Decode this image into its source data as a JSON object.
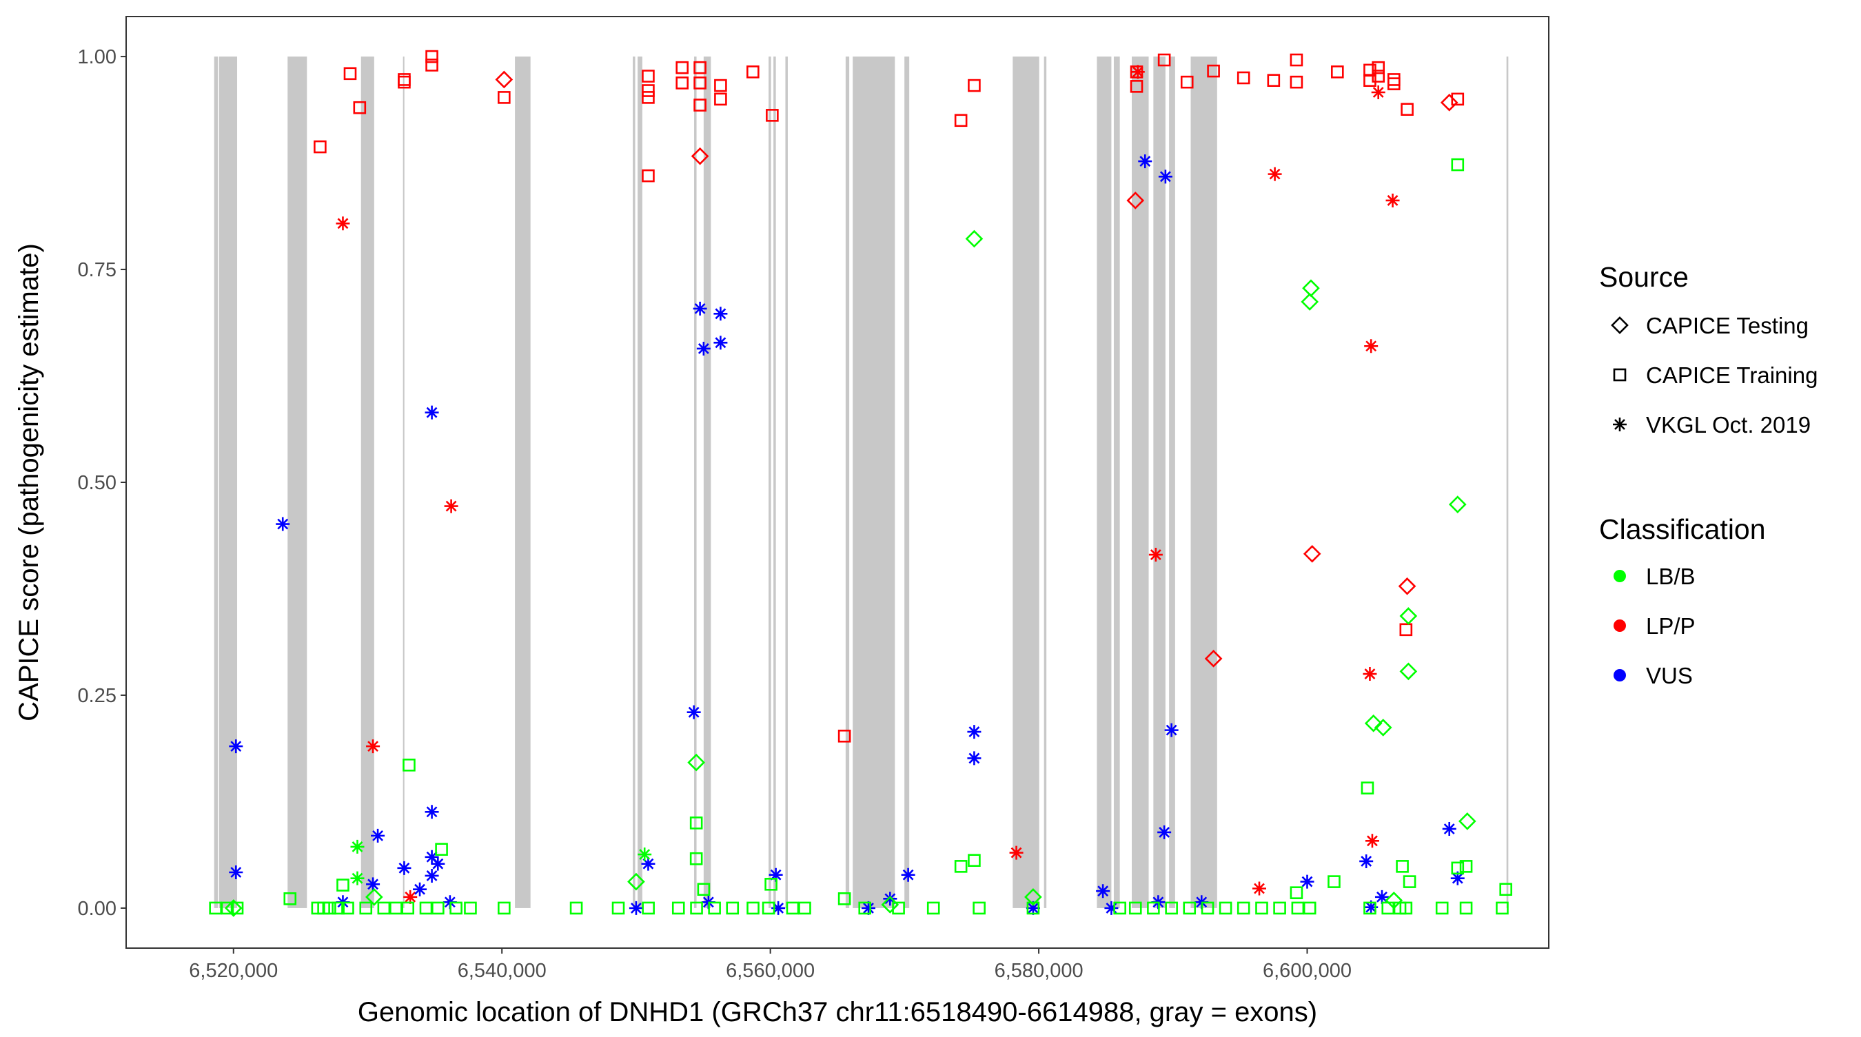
{
  "chart_data": {
    "type": "scatter",
    "xlabel": "Genomic location of DNHD1 (GRCh37 chr11:6518490-6614988, gray = exons)",
    "ylabel": "CAPICE score (pathogenicity estimate)",
    "xlim": [
      6512000,
      6618000
    ],
    "ylim": [
      -0.047,
      1.047
    ],
    "x_ticks": [
      6520000,
      6540000,
      6560000,
      6580000,
      6600000
    ],
    "x_tick_labels": [
      "6,520,000",
      "6,540,000",
      "6,560,000",
      "6,580,000",
      "6,600,000"
    ],
    "y_ticks": [
      0,
      0.25,
      0.5,
      0.75,
      1.0
    ],
    "y_tick_labels": [
      "0.00",
      "0.25",
      "0.50",
      "0.75",
      "1.00"
    ],
    "grid": false,
    "legend_placement": "right",
    "legend": {
      "source_title": "Source",
      "sources": [
        {
          "key": "testing",
          "label": "CAPICE Testing",
          "shape": "diamond"
        },
        {
          "key": "training",
          "label": "CAPICE Training",
          "shape": "square"
        },
        {
          "key": "vkgl",
          "label": "VKGL Oct. 2019",
          "shape": "asterisk"
        }
      ],
      "class_title": "Classification",
      "classes": [
        {
          "key": "LB/B",
          "label": "LB/B",
          "color": "#00ff00"
        },
        {
          "key": "LP/P",
          "label": "LP/P",
          "color": "#ff0000"
        },
        {
          "key": "VUS",
          "label": "VUS",
          "color": "#0000ff"
        }
      ]
    },
    "exons": [
      [
        6518560,
        6518840
      ],
      [
        6518920,
        6520270
      ],
      [
        6524030,
        6525470
      ],
      [
        6529500,
        6530480
      ],
      [
        6532630,
        6532720
      ],
      [
        6540970,
        6542130
      ],
      [
        6549750,
        6549930
      ],
      [
        6550110,
        6550460
      ],
      [
        6554320,
        6554500
      ],
      [
        6555030,
        6555570
      ],
      [
        6559870,
        6560050
      ],
      [
        6560230,
        6560410
      ],
      [
        6561120,
        6561300
      ],
      [
        6565610,
        6565880
      ],
      [
        6566140,
        6569280
      ],
      [
        6569990,
        6570350
      ],
      [
        6578060,
        6580030
      ],
      [
        6580390,
        6580570
      ],
      [
        6584330,
        6585410
      ],
      [
        6585590,
        6586040
      ],
      [
        6586930,
        6588190
      ],
      [
        6588540,
        6589440
      ],
      [
        6589710,
        6590160
      ],
      [
        6591320,
        6593290
      ],
      [
        6614850,
        6614988
      ]
    ],
    "points_fields": [
      "position",
      "score",
      "source",
      "classification"
    ],
    "points": [
      [
        6528690,
        0.98,
        "training",
        "LP/P"
      ],
      [
        6529400,
        0.94,
        "training",
        "LP/P"
      ],
      [
        6526450,
        0.894,
        "training",
        "LP/P"
      ],
      [
        6532720,
        0.97,
        "training",
        "LP/P"
      ],
      [
        6532720,
        0.973,
        "training",
        "LP/P"
      ],
      [
        6534780,
        1.0,
        "training",
        "LP/P"
      ],
      [
        6534780,
        0.99,
        "training",
        "LP/P"
      ],
      [
        6540160,
        0.952,
        "training",
        "LP/P"
      ],
      [
        6540160,
        0.973,
        "testing",
        "LP/P"
      ],
      [
        6550900,
        0.977,
        "training",
        "LP/P"
      ],
      [
        6550900,
        0.96,
        "training",
        "LP/P"
      ],
      [
        6550900,
        0.952,
        "training",
        "LP/P"
      ],
      [
        6550900,
        0.86,
        "training",
        "LP/P"
      ],
      [
        6553430,
        0.969,
        "training",
        "LP/P"
      ],
      [
        6553430,
        0.987,
        "training",
        "LP/P"
      ],
      [
        6554760,
        0.987,
        "training",
        "LP/P"
      ],
      [
        6554760,
        0.969,
        "training",
        "LP/P"
      ],
      [
        6554760,
        0.943,
        "training",
        "LP/P"
      ],
      [
        6556290,
        0.966,
        "training",
        "LP/P"
      ],
      [
        6556290,
        0.95,
        "training",
        "LP/P"
      ],
      [
        6558700,
        0.982,
        "training",
        "LP/P"
      ],
      [
        6560140,
        0.931,
        "training",
        "LP/P"
      ],
      [
        6554760,
        0.883,
        "testing",
        "LP/P"
      ],
      [
        6574200,
        0.925,
        "training",
        "LP/P"
      ],
      [
        6575190,
        0.966,
        "training",
        "LP/P"
      ],
      [
        6587290,
        0.965,
        "training",
        "LP/P"
      ],
      [
        6587290,
        0.982,
        "training",
        "LP/P"
      ],
      [
        6589350,
        0.996,
        "training",
        "LP/P"
      ],
      [
        6591050,
        0.97,
        "training",
        "LP/P"
      ],
      [
        6593020,
        0.983,
        "training",
        "LP/P"
      ],
      [
        6595260,
        0.975,
        "training",
        "LP/P"
      ],
      [
        6597500,
        0.972,
        "training",
        "LP/P"
      ],
      [
        6599200,
        0.996,
        "training",
        "LP/P"
      ],
      [
        6599200,
        0.97,
        "training",
        "LP/P"
      ],
      [
        6602250,
        0.982,
        "training",
        "LP/P"
      ],
      [
        6604670,
        0.984,
        "training",
        "LP/P"
      ],
      [
        6604670,
        0.972,
        "training",
        "LP/P"
      ],
      [
        6605300,
        0.987,
        "training",
        "LP/P"
      ],
      [
        6605300,
        0.977,
        "training",
        "LP/P"
      ],
      [
        6606460,
        0.973,
        "training",
        "LP/P"
      ],
      [
        6606460,
        0.968,
        "training",
        "LP/P"
      ],
      [
        6607450,
        0.938,
        "training",
        "LP/P"
      ],
      [
        6611210,
        0.95,
        "training",
        "LP/P"
      ],
      [
        6610590,
        0.946,
        "testing",
        "LP/P"
      ],
      [
        6565520,
        0.202,
        "training",
        "LP/P"
      ],
      [
        6607360,
        0.327,
        "training",
        "LP/P"
      ],
      [
        6587200,
        0.831,
        "testing",
        "LP/P"
      ],
      [
        6593020,
        0.293,
        "testing",
        "LP/P"
      ],
      [
        6600370,
        0.416,
        "testing",
        "LP/P"
      ],
      [
        6607450,
        0.378,
        "testing",
        "LP/P"
      ],
      [
        6528150,
        0.804,
        "vkgl",
        "LP/P"
      ],
      [
        6536220,
        0.472,
        "vkgl",
        "LP/P"
      ],
      [
        6530390,
        0.19,
        "vkgl",
        "LP/P"
      ],
      [
        6533170,
        0.013,
        "vkgl",
        "LP/P"
      ],
      [
        6587380,
        0.982,
        "vkgl",
        "LP/P"
      ],
      [
        6588720,
        0.415,
        "vkgl",
        "LP/P"
      ],
      [
        6597590,
        0.862,
        "vkgl",
        "LP/P"
      ],
      [
        6605300,
        0.958,
        "vkgl",
        "LP/P"
      ],
      [
        6606370,
        0.831,
        "vkgl",
        "LP/P"
      ],
      [
        6604760,
        0.66,
        "vkgl",
        "LP/P"
      ],
      [
        6604670,
        0.275,
        "vkgl",
        "LP/P"
      ],
      [
        6604850,
        0.079,
        "vkgl",
        "LP/P"
      ],
      [
        6578330,
        0.065,
        "vkgl",
        "LP/P"
      ],
      [
        6596430,
        0.023,
        "vkgl",
        "LP/P"
      ],
      [
        6523670,
        0.451,
        "vkgl",
        "VUS"
      ],
      [
        6520180,
        0.19,
        "vkgl",
        "VUS"
      ],
      [
        6520180,
        0.042,
        "vkgl",
        "VUS"
      ],
      [
        6534780,
        0.582,
        "vkgl",
        "VUS"
      ],
      [
        6534780,
        0.113,
        "vkgl",
        "VUS"
      ],
      [
        6530750,
        0.085,
        "vkgl",
        "VUS"
      ],
      [
        6532720,
        0.047,
        "vkgl",
        "VUS"
      ],
      [
        6534780,
        0.06,
        "vkgl",
        "VUS"
      ],
      [
        6535230,
        0.052,
        "vkgl",
        "VUS"
      ],
      [
        6534780,
        0.038,
        "vkgl",
        "VUS"
      ],
      [
        6554300,
        0.23,
        "vkgl",
        "VUS"
      ],
      [
        6554760,
        0.704,
        "vkgl",
        "VUS"
      ],
      [
        6555030,
        0.657,
        "vkgl",
        "VUS"
      ],
      [
        6556290,
        0.698,
        "vkgl",
        "VUS"
      ],
      [
        6556290,
        0.664,
        "vkgl",
        "VUS"
      ],
      [
        6550900,
        0.052,
        "vkgl",
        "VUS"
      ],
      [
        6560410,
        0.039,
        "vkgl",
        "VUS"
      ],
      [
        6570270,
        0.039,
        "vkgl",
        "VUS"
      ],
      [
        6575190,
        0.207,
        "vkgl",
        "VUS"
      ],
      [
        6575190,
        0.176,
        "vkgl",
        "VUS"
      ],
      [
        6587920,
        0.877,
        "vkgl",
        "VUS"
      ],
      [
        6589440,
        0.859,
        "vkgl",
        "VUS"
      ],
      [
        6589890,
        0.209,
        "vkgl",
        "VUS"
      ],
      [
        6589350,
        0.089,
        "vkgl",
        "VUS"
      ],
      [
        6584780,
        0.02,
        "vkgl",
        "VUS"
      ],
      [
        6600000,
        0.031,
        "vkgl",
        "VUS"
      ],
      [
        6604400,
        0.055,
        "vkgl",
        "VUS"
      ],
      [
        6610590,
        0.093,
        "vkgl",
        "VUS"
      ],
      [
        6611210,
        0.035,
        "vkgl",
        "VUS"
      ],
      [
        6528150,
        0.007,
        "vkgl",
        "VUS"
      ],
      [
        6530390,
        0.028,
        "vkgl",
        "VUS"
      ],
      [
        6533880,
        0.022,
        "vkgl",
        "VUS"
      ],
      [
        6536130,
        0.007,
        "vkgl",
        "VUS"
      ],
      [
        6550000,
        0.0,
        "vkgl",
        "VUS"
      ],
      [
        6555390,
        0.007,
        "vkgl",
        "VUS"
      ],
      [
        6560590,
        0.0,
        "vkgl",
        "VUS"
      ],
      [
        6567310,
        0.0,
        "vkgl",
        "VUS"
      ],
      [
        6568920,
        0.011,
        "vkgl",
        "VUS"
      ],
      [
        6579580,
        0.0,
        "vkgl",
        "VUS"
      ],
      [
        6585410,
        0.0,
        "vkgl",
        "VUS"
      ],
      [
        6588900,
        0.007,
        "vkgl",
        "VUS"
      ],
      [
        6592130,
        0.007,
        "vkgl",
        "VUS"
      ],
      [
        6605570,
        0.013,
        "vkgl",
        "VUS"
      ],
      [
        6604760,
        0.001,
        "vkgl",
        "VUS"
      ],
      [
        6575190,
        0.786,
        "testing",
        "LB/B"
      ],
      [
        6600280,
        0.728,
        "testing",
        "LB/B"
      ],
      [
        6600190,
        0.712,
        "testing",
        "LB/B"
      ],
      [
        6611210,
        0.474,
        "testing",
        "LB/B"
      ],
      [
        6607540,
        0.343,
        "testing",
        "LB/B"
      ],
      [
        6607540,
        0.278,
        "testing",
        "LB/B"
      ],
      [
        6604940,
        0.217,
        "testing",
        "LB/B"
      ],
      [
        6605660,
        0.212,
        "testing",
        "LB/B"
      ],
      [
        6611930,
        0.102,
        "testing",
        "LB/B"
      ],
      [
        6554480,
        0.171,
        "testing",
        "LB/B"
      ],
      [
        6550000,
        0.031,
        "testing",
        "LB/B"
      ],
      [
        6520000,
        0.0,
        "testing",
        "LB/B"
      ],
      [
        6611210,
        0.873,
        "training",
        "LB/B"
      ],
      [
        6604490,
        0.141,
        "training",
        "LB/B"
      ],
      [
        6533080,
        0.168,
        "training",
        "LB/B"
      ],
      [
        6535500,
        0.069,
        "training",
        "LB/B"
      ],
      [
        6554480,
        0.1,
        "training",
        "LB/B"
      ],
      [
        6554480,
        0.058,
        "training",
        "LB/B"
      ],
      [
        6607090,
        0.049,
        "training",
        "LB/B"
      ],
      [
        6611840,
        0.049,
        "training",
        "LB/B"
      ],
      [
        6611210,
        0.047,
        "training",
        "LB/B"
      ],
      [
        6574200,
        0.049,
        "training",
        "LB/B"
      ],
      [
        6575190,
        0.056,
        "training",
        "LB/B"
      ],
      [
        6565520,
        0.011,
        "training",
        "LB/B"
      ],
      [
        6524210,
        0.011,
        "training",
        "LB/B"
      ],
      [
        6528150,
        0.027,
        "training",
        "LB/B"
      ],
      [
        6602000,
        0.031,
        "training",
        "LB/B"
      ],
      [
        6607630,
        0.031,
        "training",
        "LB/B"
      ],
      [
        6529230,
        0.072,
        "vkgl",
        "LB/B"
      ],
      [
        6529230,
        0.035,
        "vkgl",
        "LB/B"
      ],
      [
        6550630,
        0.063,
        "vkgl",
        "LB/B"
      ],
      [
        6518660,
        0.0,
        "training",
        "LB/B"
      ],
      [
        6519550,
        0.0,
        "training",
        "LB/B"
      ],
      [
        6520270,
        0.0,
        "training",
        "LB/B"
      ],
      [
        6526270,
        0.0,
        "training",
        "LB/B"
      ],
      [
        6526720,
        0.0,
        "training",
        "LB/B"
      ],
      [
        6527170,
        0.0,
        "training",
        "LB/B"
      ],
      [
        6527800,
        0.0,
        "training",
        "LB/B"
      ],
      [
        6528510,
        0.0,
        "training",
        "LB/B"
      ],
      [
        6529860,
        0.0,
        "training",
        "LB/B"
      ],
      [
        6531200,
        0.0,
        "training",
        "LB/B"
      ],
      [
        6532100,
        0.0,
        "training",
        "LB/B"
      ],
      [
        6532990,
        0.0,
        "training",
        "LB/B"
      ],
      [
        6534340,
        0.0,
        "training",
        "LB/B"
      ],
      [
        6535230,
        0.0,
        "training",
        "LB/B"
      ],
      [
        6536580,
        0.0,
        "training",
        "LB/B"
      ],
      [
        6537650,
        0.0,
        "training",
        "LB/B"
      ],
      [
        6540160,
        0.0,
        "training",
        "LB/B"
      ],
      [
        6545540,
        0.0,
        "training",
        "LB/B"
      ],
      [
        6548670,
        0.0,
        "training",
        "LB/B"
      ],
      [
        6550910,
        0.0,
        "training",
        "LB/B"
      ],
      [
        6553150,
        0.0,
        "training",
        "LB/B"
      ],
      [
        6554500,
        0.0,
        "training",
        "LB/B"
      ],
      [
        6555840,
        0.0,
        "training",
        "LB/B"
      ],
      [
        6557180,
        0.0,
        "training",
        "LB/B"
      ],
      [
        6558710,
        0.0,
        "training",
        "LB/B"
      ],
      [
        6559870,
        0.0,
        "training",
        "LB/B"
      ],
      [
        6561660,
        0.0,
        "training",
        "LB/B"
      ],
      [
        6562560,
        0.0,
        "training",
        "LB/B"
      ],
      [
        6567040,
        0.0,
        "training",
        "LB/B"
      ],
      [
        6569550,
        0.0,
        "training",
        "LB/B"
      ],
      [
        6572150,
        0.0,
        "training",
        "LB/B"
      ],
      [
        6575560,
        0.0,
        "training",
        "LB/B"
      ],
      [
        6579580,
        0.0,
        "training",
        "LB/B"
      ],
      [
        6586040,
        0.0,
        "training",
        "LB/B"
      ],
      [
        6587200,
        0.0,
        "training",
        "LB/B"
      ],
      [
        6588540,
        0.0,
        "training",
        "LB/B"
      ],
      [
        6589890,
        0.0,
        "training",
        "LB/B"
      ],
      [
        6591230,
        0.0,
        "training",
        "LB/B"
      ],
      [
        6592580,
        0.0,
        "training",
        "LB/B"
      ],
      [
        6593920,
        0.0,
        "training",
        "LB/B"
      ],
      [
        6595260,
        0.0,
        "training",
        "LB/B"
      ],
      [
        6596610,
        0.0,
        "training",
        "LB/B"
      ],
      [
        6597950,
        0.0,
        "training",
        "LB/B"
      ],
      [
        6599300,
        0.0,
        "training",
        "LB/B"
      ],
      [
        6600190,
        0.0,
        "training",
        "LB/B"
      ],
      [
        6604670,
        0.0,
        "training",
        "LB/B"
      ],
      [
        6606020,
        0.0,
        "training",
        "LB/B"
      ],
      [
        6606910,
        0.0,
        "training",
        "LB/B"
      ],
      [
        6607360,
        0.0,
        "training",
        "LB/B"
      ],
      [
        6610050,
        0.0,
        "training",
        "LB/B"
      ],
      [
        6611840,
        0.0,
        "training",
        "LB/B"
      ],
      [
        6614530,
        0.0,
        "training",
        "LB/B"
      ],
      [
        6614800,
        0.022,
        "training",
        "LB/B"
      ],
      [
        6560050,
        0.028,
        "training",
        "LB/B"
      ],
      [
        6555030,
        0.022,
        "training",
        "LB/B"
      ],
      [
        6599200,
        0.018,
        "training",
        "LB/B"
      ],
      [
        6530480,
        0.013,
        "testing",
        "LB/B"
      ],
      [
        6568920,
        0.004,
        "testing",
        "LB/B"
      ],
      [
        6579580,
        0.013,
        "testing",
        "LB/B"
      ],
      [
        6606460,
        0.009,
        "testing",
        "LB/B"
      ]
    ]
  }
}
